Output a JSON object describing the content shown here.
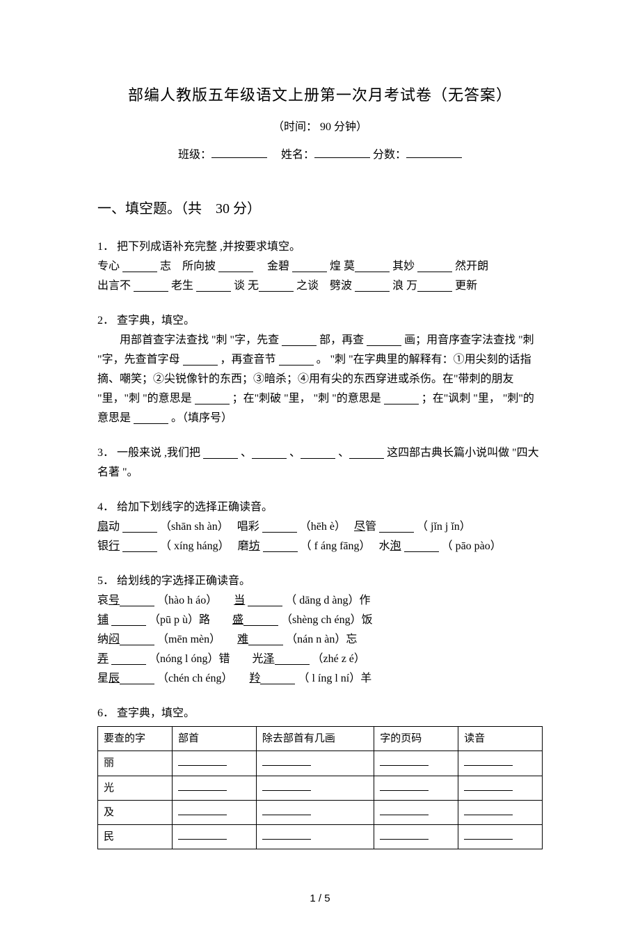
{
  "title": "部编人教版五年级语文上册第一次月考试卷（无答案）",
  "time_label": "（时间： 90 分钟）",
  "info": {
    "class_label": "班级：",
    "name_label": "姓名：",
    "score_label": "分数："
  },
  "section1_header": "一、填空题。（共　30 分）",
  "q1": {
    "num": "1．",
    "prompt": "把下列成语补充完整 ,并按要求填空。",
    "line1_parts": [
      "专心 ",
      "志　所向披 ",
      "　金碧 ",
      "煌 莫",
      "其妙 ",
      "然开朗"
    ],
    "line2_parts": [
      "出言不 ",
      " 老生 ",
      "谈 无",
      "之谈　劈波 ",
      "浪 万",
      "更新"
    ]
  },
  "q2": {
    "num": "2．",
    "prompt": "查字典，填空。",
    "body_a": "用部首查字法查找 \"刺 \"字，先查 ",
    "body_b": "部，再查 ",
    "body_c": "画；用音序查字法查找 \"刺 \"字，先查首字母 ",
    "body_d": "，再查音节 ",
    "body_e": "。 \"刺 \"在字典里的解释有：①用尖刻的话指摘、嘲笑；②尖锐像针的东西；③暗杀；④用有尖的东西穿进或杀伤。在\"带刺的朋友 \"里，\"刺 \"的意思是 ",
    "body_f": "；在\"刺破 \"里， \"刺 \"的意思是",
    "body_g": "；在\"讽刺 \"里， \"刺\"的意思是 ",
    "body_h": "。（填序号）"
  },
  "q3": {
    "num": "3．",
    "a": "一般来说 ,我们把 ",
    "b": "、",
    "c": "、",
    "d": "、",
    "e": "这四部古典长篇小说叫做 \"四大名著 \"。"
  },
  "q4": {
    "num": "4．",
    "prompt": "给加下划线字的选择正确读音。",
    "row1": {
      "w1a": "扇",
      "w1b": "动 ",
      "p1": "（shān sh àn）",
      "w2": "唱彩 ",
      "p2": "（hēh è）",
      "w3a": "尽",
      "w3b": "管 ",
      "p3": "（ jǐn j ǐn）"
    },
    "row2": {
      "w1a": "银",
      "w1b": "行",
      "p1": "（ xíng háng）",
      "w2a": "磨",
      "w2b": "坊",
      "p2": "（ f áng fāng）",
      "w3a": "水",
      "w3b": "泡",
      "p3": "（ pāo pào）"
    }
  },
  "q5": {
    "num": "5．",
    "prompt": "给划线的字选择正确读音。",
    "rows": [
      {
        "l1": "哀",
        "l1u": "号",
        "p1": "（hào h áo）",
        "l2u": "当",
        "l2": " ",
        "p2": "（ dāng d àng）作"
      },
      {
        "l1u": "铺",
        "l1": " ",
        "p1": "（pū p ù）路",
        "l2u": "盛",
        "l2": "",
        "p2": "（shèng ch éng）饭"
      },
      {
        "l1": "纳",
        "l1u": "闷",
        "p1": "（mēn mèn）",
        "l2u": "难",
        "l2": "",
        "p2": "（nán n àn）忘"
      },
      {
        "l1u": "弄",
        "l1": " ",
        "p1": "（nóng l óng）错",
        "l2": "光",
        "l2u": "泽",
        "p2": "（zhé z é）"
      },
      {
        "l1": "星",
        "l1u": "辰",
        "p1": "（chén ch éng）",
        "l2u": "羚",
        "l2": "",
        "p2": "（ l íng l ní）羊"
      }
    ]
  },
  "q6": {
    "num": "6．",
    "prompt": "查字典，填空。",
    "headers": [
      "要查的字",
      "部首",
      "除去部首有几画",
      "字的页码",
      "读音"
    ],
    "rows": [
      "丽",
      "光",
      "及",
      "民"
    ]
  },
  "footer": "1 / 5"
}
